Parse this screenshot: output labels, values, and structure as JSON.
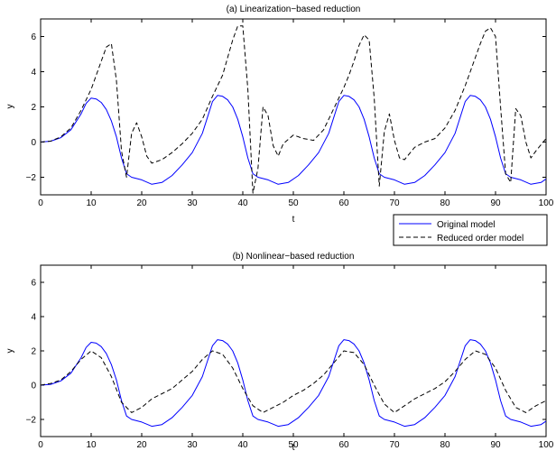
{
  "chart_data": [
    {
      "type": "line",
      "title": "(a) Linearization−based reduction",
      "xlabel": "t",
      "ylabel": "y",
      "xlim": [
        0,
        100
      ],
      "ylim": [
        -3,
        7
      ],
      "xticks": [
        "0",
        "10",
        "20",
        "30",
        "40",
        "50",
        "60",
        "70",
        "80",
        "90",
        "100"
      ],
      "yticks": [
        "−2",
        "0",
        "2",
        "4",
        "6"
      ],
      "grid": false,
      "series": [
        {
          "name": "Original model",
          "color": "#0000ff",
          "style": "solid",
          "x": [
            0,
            2,
            4,
            6,
            8,
            9,
            10,
            11,
            12,
            13,
            14,
            15,
            16,
            17,
            18,
            20,
            22,
            24,
            26,
            28,
            30,
            32,
            33,
            34,
            35,
            36,
            37,
            38,
            39,
            40,
            41,
            42,
            43,
            45,
            47,
            49,
            51,
            53,
            55,
            57,
            58,
            59,
            60,
            61,
            62,
            63,
            64,
            65,
            66,
            67,
            68,
            70,
            72,
            74,
            76,
            78,
            80,
            82,
            83,
            84,
            85,
            86,
            87,
            88,
            89,
            90,
            91,
            92,
            93,
            95,
            97,
            99,
            100
          ],
          "y": [
            0,
            0.05,
            0.25,
            0.7,
            1.6,
            2.2,
            2.5,
            2.45,
            2.25,
            1.85,
            1.2,
            0.3,
            -0.9,
            -1.8,
            -2.0,
            -2.15,
            -2.4,
            -2.3,
            -1.9,
            -1.3,
            -0.6,
            0.5,
            1.4,
            2.3,
            2.65,
            2.6,
            2.4,
            2.0,
            1.3,
            0.3,
            -0.9,
            -1.8,
            -2.0,
            -2.15,
            -2.4,
            -2.3,
            -1.9,
            -1.3,
            -0.6,
            0.5,
            1.4,
            2.3,
            2.65,
            2.6,
            2.4,
            2.0,
            1.3,
            0.3,
            -0.9,
            -1.8,
            -2.0,
            -2.15,
            -2.4,
            -2.3,
            -1.9,
            -1.3,
            -0.6,
            0.5,
            1.4,
            2.3,
            2.65,
            2.6,
            2.4,
            2.0,
            1.3,
            0.3,
            -0.9,
            -1.8,
            -2.0,
            -2.15,
            -2.4,
            -2.3,
            -2.1
          ]
        },
        {
          "name": "Reduced order model",
          "color": "#000000",
          "style": "dashed",
          "x": [
            0,
            2,
            4,
            6,
            8,
            10,
            11,
            12,
            13,
            14,
            15,
            16,
            17,
            18,
            19,
            20,
            21,
            22,
            24,
            26,
            28,
            30,
            32,
            34,
            36,
            37,
            38,
            39,
            40,
            41,
            42,
            43,
            44,
            45,
            46,
            47,
            48,
            50,
            52,
            54,
            56,
            58,
            60,
            61,
            62,
            63,
            64,
            65,
            66,
            67,
            68,
            69,
            70,
            71,
            72,
            74,
            76,
            78,
            80,
            82,
            84,
            85,
            86,
            87,
            88,
            89,
            90,
            91,
            92,
            93,
            94,
            95,
            96,
            97,
            98,
            100
          ],
          "y": [
            0,
            0.05,
            0.3,
            0.8,
            1.8,
            3.0,
            3.8,
            4.6,
            5.4,
            5.6,
            3.5,
            -0.5,
            -2.0,
            0.5,
            1.1,
            0.3,
            -0.8,
            -1.2,
            -1.0,
            -0.6,
            -0.1,
            0.5,
            1.3,
            2.6,
            3.8,
            4.8,
            5.8,
            6.6,
            6.6,
            3.0,
            -2.9,
            -1.5,
            2.0,
            1.5,
            -0.2,
            -0.8,
            -0.1,
            0.4,
            0.2,
            0.1,
            0.7,
            1.9,
            3.1,
            3.8,
            4.6,
            5.5,
            6.1,
            5.8,
            2.5,
            -2.5,
            0.6,
            1.6,
            0.1,
            -0.9,
            -1.0,
            -0.3,
            0.0,
            0.2,
            0.8,
            1.8,
            3.2,
            4.0,
            4.8,
            5.6,
            6.3,
            6.5,
            6.0,
            2.0,
            -1.8,
            -2.3,
            1.9,
            1.5,
            0.0,
            -0.9,
            -0.5,
            0.2
          ]
        }
      ],
      "legend": {
        "entries": [
          "Original model",
          "Reduced order model"
        ],
        "placement": "below-right"
      }
    },
    {
      "type": "line",
      "title": "(b) Nonlinear−based reduction",
      "xlabel": "t",
      "ylabel": "y",
      "xlim": [
        0,
        100
      ],
      "ylim": [
        -3,
        7
      ],
      "xticks": [
        "0",
        "10",
        "20",
        "30",
        "40",
        "50",
        "60",
        "70",
        "80",
        "90",
        "100"
      ],
      "yticks": [
        "−2",
        "0",
        "2",
        "4",
        "6"
      ],
      "grid": false,
      "series": [
        {
          "name": "Original model",
          "color": "#0000ff",
          "style": "solid",
          "x": [
            0,
            2,
            4,
            6,
            8,
            9,
            10,
            11,
            12,
            13,
            14,
            15,
            16,
            17,
            18,
            20,
            22,
            24,
            26,
            28,
            30,
            32,
            33,
            34,
            35,
            36,
            37,
            38,
            39,
            40,
            41,
            42,
            43,
            45,
            47,
            49,
            51,
            53,
            55,
            57,
            58,
            59,
            60,
            61,
            62,
            63,
            64,
            65,
            66,
            67,
            68,
            70,
            72,
            74,
            76,
            78,
            80,
            82,
            83,
            84,
            85,
            86,
            87,
            88,
            89,
            90,
            91,
            92,
            93,
            95,
            97,
            99,
            100
          ],
          "y": [
            0,
            0.05,
            0.25,
            0.7,
            1.6,
            2.2,
            2.5,
            2.45,
            2.25,
            1.85,
            1.2,
            0.3,
            -0.9,
            -1.8,
            -2.0,
            -2.15,
            -2.4,
            -2.3,
            -1.9,
            -1.3,
            -0.6,
            0.5,
            1.4,
            2.3,
            2.65,
            2.6,
            2.4,
            2.0,
            1.3,
            0.3,
            -0.9,
            -1.8,
            -2.0,
            -2.15,
            -2.4,
            -2.3,
            -1.9,
            -1.3,
            -0.6,
            0.5,
            1.4,
            2.3,
            2.65,
            2.6,
            2.4,
            2.0,
            1.3,
            0.3,
            -0.9,
            -1.8,
            -2.0,
            -2.15,
            -2.4,
            -2.3,
            -1.9,
            -1.3,
            -0.6,
            0.5,
            1.4,
            2.3,
            2.65,
            2.6,
            2.4,
            2.0,
            1.3,
            0.3,
            -0.9,
            -1.8,
            -2.0,
            -2.15,
            -2.4,
            -2.3,
            -2.1
          ]
        },
        {
          "name": "Reduced order model",
          "color": "#000000",
          "style": "dashed",
          "x": [
            0,
            2,
            4,
            6,
            8,
            10,
            12,
            14,
            16,
            18,
            20,
            22,
            24,
            26,
            28,
            30,
            32,
            34,
            36,
            38,
            40,
            42,
            44,
            46,
            48,
            50,
            52,
            54,
            56,
            58,
            60,
            62,
            64,
            66,
            68,
            70,
            72,
            74,
            76,
            78,
            80,
            82,
            84,
            86,
            88,
            90,
            92,
            94,
            96,
            98,
            100
          ],
          "y": [
            0,
            0.1,
            0.3,
            0.8,
            1.5,
            2.0,
            1.6,
            0.5,
            -1.0,
            -1.6,
            -1.3,
            -0.8,
            -0.5,
            -0.2,
            0.3,
            0.8,
            1.5,
            2.0,
            1.8,
            1.0,
            -0.2,
            -1.2,
            -1.6,
            -1.3,
            -1.0,
            -0.6,
            -0.3,
            0.1,
            0.6,
            1.3,
            2.0,
            1.9,
            1.2,
            0.0,
            -1.1,
            -1.6,
            -1.2,
            -0.8,
            -0.5,
            -0.2,
            0.2,
            0.8,
            1.5,
            2.0,
            1.8,
            1.0,
            -0.3,
            -1.3,
            -1.6,
            -1.2,
            -0.9
          ]
        }
      ]
    }
  ]
}
